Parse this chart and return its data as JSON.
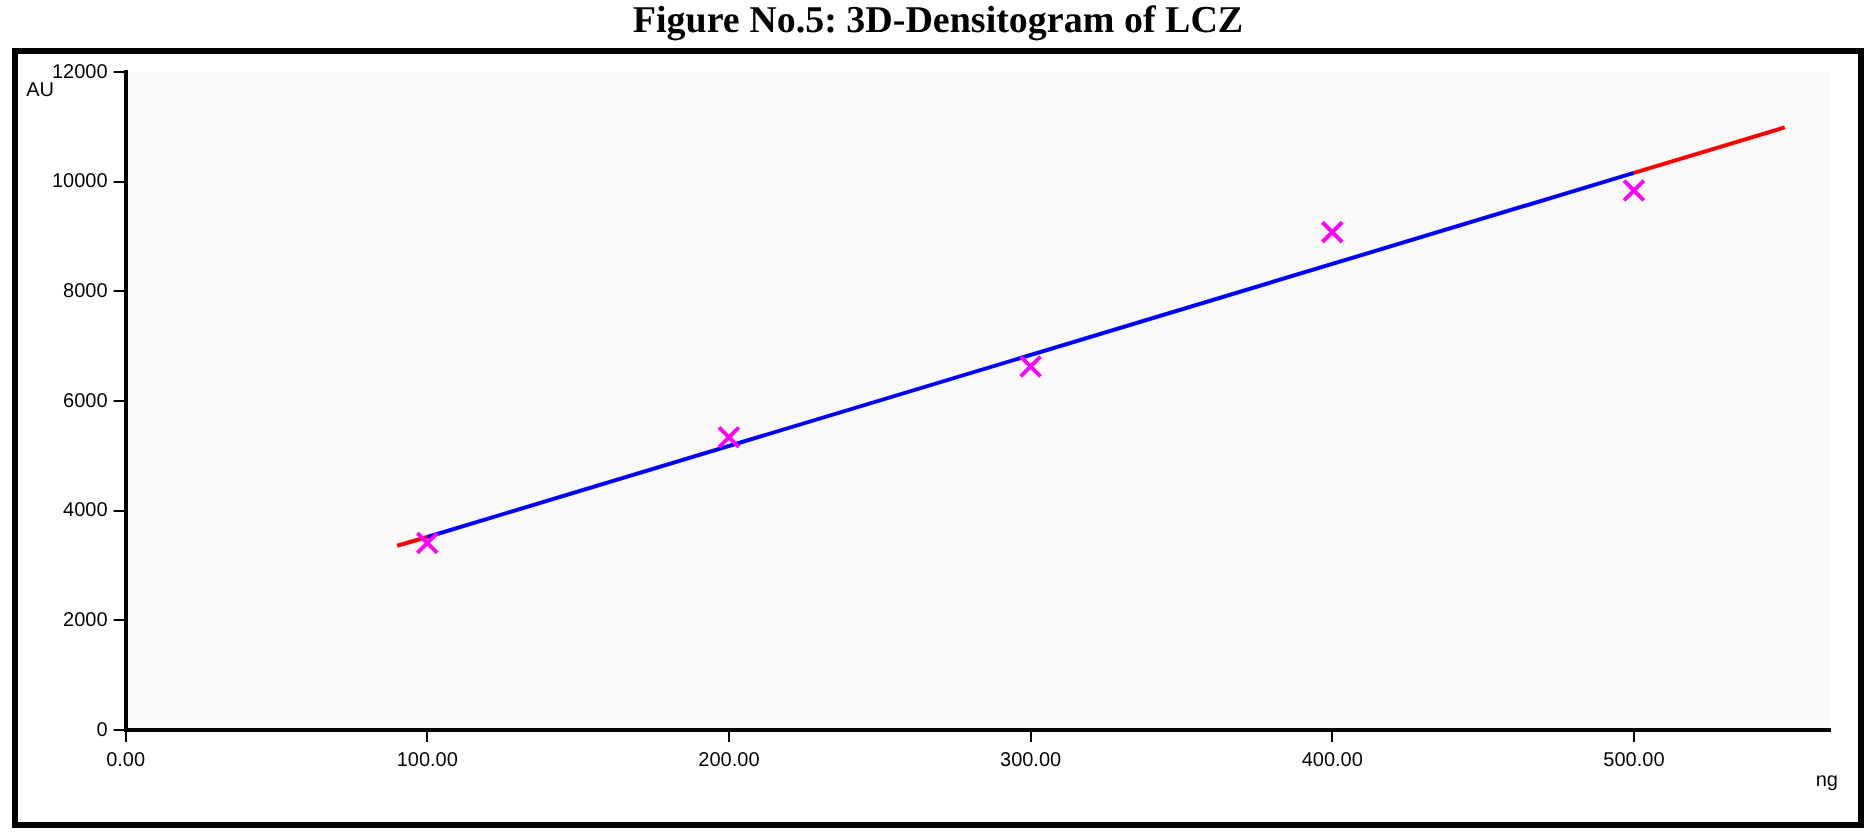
{
  "chart_data": {
    "type": "scatter",
    "title": "Figure No.5: 3D-Densitogram of LCZ",
    "xlabel": "ng",
    "ylabel": "AU",
    "xlim": [
      0,
      565
    ],
    "xticks": [
      {
        "value": 0,
        "label": "0.00"
      },
      {
        "value": 100,
        "label": "100.00"
      },
      {
        "value": 200,
        "label": "200.00"
      },
      {
        "value": 300,
        "label": "300.00"
      },
      {
        "value": 400,
        "label": "400.00"
      },
      {
        "value": 500,
        "label": "500.00"
      }
    ],
    "ylim": [
      0,
      12000
    ],
    "yticks": [
      0,
      2000,
      4000,
      6000,
      8000,
      10000,
      12000
    ],
    "grid": false,
    "legend": false,
    "marker": "cross",
    "series": [
      {
        "type": "line",
        "marker": "none",
        "color": "#ff0000",
        "x": [
          90,
          100,
          300,
          500,
          550
        ],
        "values": [
          3360,
          3520,
          null,
          10160,
          10990
        ]
      },
      {
        "type": "line",
        "marker": "none",
        "color": "#0000ff",
        "x": [
          100,
          500
        ],
        "values": [
          3520,
          10160
        ]
      },
      {
        "color": "#ff00ff",
        "x": [
          100,
          200,
          300,
          400,
          500
        ],
        "values": [
          3410,
          5340,
          6630,
          9080,
          9840
        ]
      }
    ]
  }
}
